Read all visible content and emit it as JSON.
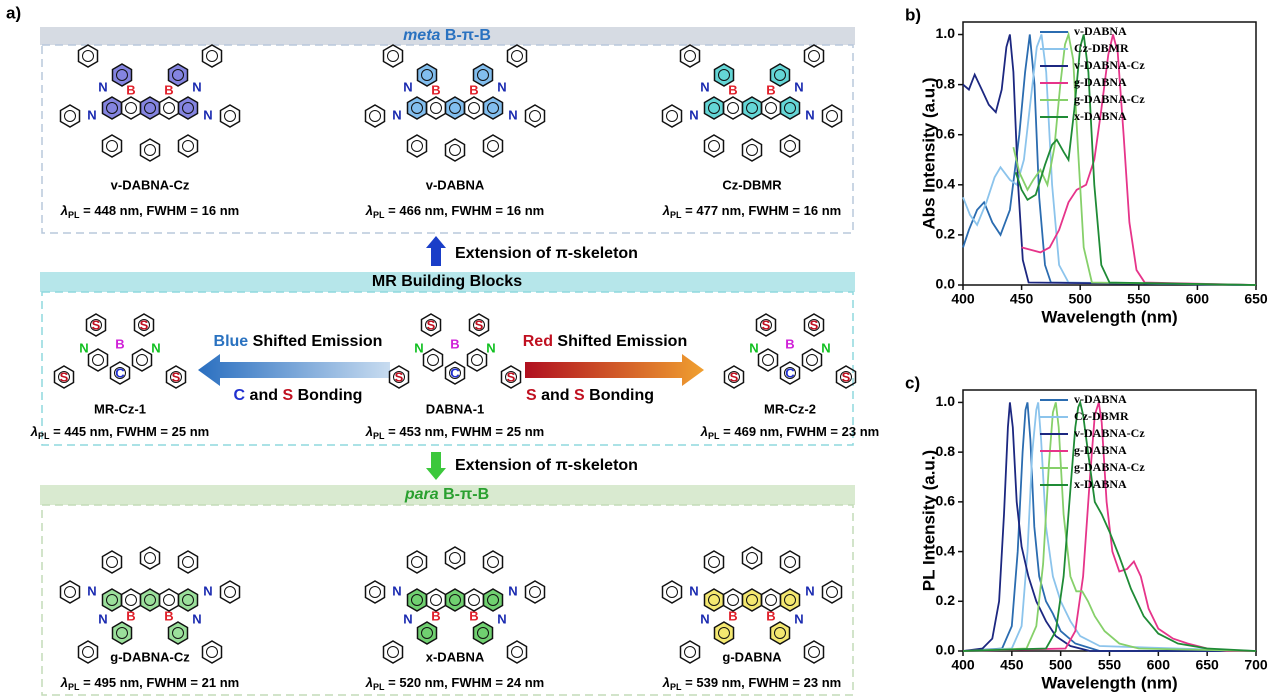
{
  "panel_a": {
    "label": "a)",
    "atoms": {
      "boron": "B",
      "nitrogen": "N",
      "carbon": "C",
      "sulfur": "S"
    },
    "lambda_symbol": "λ",
    "lambda_sub": "PL",
    "meta_header": [
      "meta",
      " B-π-B"
    ],
    "meta_molecules": [
      {
        "name": "v-DABNA-Cz",
        "caption": " = 448 nm, FWHM = 16 nm"
      },
      {
        "name": "v-DABNA",
        "caption": " = 466 nm, FWHM = 16 nm"
      },
      {
        "name": "Cz-DBMR",
        "caption": " = 477 nm, FWHM = 16 nm"
      }
    ],
    "extension_top": "Extension of π-skeleton",
    "mr_header": "MR Building Blocks",
    "blue_shift": [
      "Blue",
      " Shifted Emission"
    ],
    "blue_bonding": [
      "C",
      " and ",
      "S",
      " Bonding"
    ],
    "red_shift": [
      "Red",
      " Shifted Emission"
    ],
    "red_bonding": [
      "S",
      " and ",
      "S",
      " Bonding"
    ],
    "mr_molecules": [
      {
        "name": "MR-Cz-1",
        "caption": " = 445 nm, FWHM = 25 nm"
      },
      {
        "name": "DABNA-1",
        "caption": " = 453 nm, FWHM = 25 nm"
      },
      {
        "name": "MR-Cz-2",
        "caption": " = 469 nm, FWHM = 23 nm"
      }
    ],
    "extension_bottom": "Extension of π-skeleton",
    "para_header": [
      "para",
      " B-π-B"
    ],
    "para_molecules": [
      {
        "name": "g-DABNA-Cz",
        "caption": " = 495 nm, FWHM = 21 nm"
      },
      {
        "name": "x-DABNA",
        "caption": " = 520 nm, FWHM = 24 nm"
      },
      {
        "name": "g-DABNA",
        "caption": " = 539 nm, FWHM = 23 nm"
      }
    ]
  },
  "chart_data": [
    {
      "type": "line",
      "panel_label": "b)",
      "x_label": "Wavelength (nm)",
      "y_label": "Abs Intensity (a.u.)",
      "xlim": [
        400,
        650
      ],
      "xticks": [
        400,
        450,
        500,
        550,
        600,
        650
      ],
      "ylim": [
        0,
        1.05
      ],
      "yticks": [
        {
          "value": 0,
          "label": "0.0"
        },
        0.2,
        0.4,
        0.6,
        0.8,
        {
          "value": 1,
          "label": "1.0"
        }
      ],
      "legend": "upper right",
      "series": [
        {
          "name": "v-DABNA",
          "color": "#2b6cb0",
          "x": [
            400,
            405,
            412,
            418,
            425,
            432,
            440,
            448,
            453,
            457,
            461,
            465,
            470,
            475,
            650
          ],
          "values": [
            0.15,
            0.22,
            0.3,
            0.33,
            0.25,
            0.2,
            0.3,
            0.6,
            0.85,
            1.0,
            0.8,
            0.35,
            0.08,
            0.01,
            0
          ]
        },
        {
          "name": "Cz-DBMR",
          "color": "#8cc4ec",
          "x": [
            400,
            406,
            412,
            420,
            427,
            432,
            440,
            446,
            452,
            458,
            463,
            467,
            471,
            476,
            482,
            490,
            650
          ],
          "values": [
            0.35,
            0.28,
            0.24,
            0.33,
            0.43,
            0.47,
            0.42,
            0.4,
            0.5,
            0.75,
            0.95,
            1.0,
            0.85,
            0.4,
            0.08,
            0.01,
            0
          ]
        },
        {
          "name": "v-DABNA-Cz",
          "color": "#1c2780",
          "x": [
            400,
            405,
            410,
            416,
            422,
            428,
            433,
            437,
            440,
            443,
            447,
            451,
            456,
            650
          ],
          "values": [
            0.8,
            0.78,
            0.84,
            0.78,
            0.72,
            0.69,
            0.78,
            0.95,
            1.0,
            0.85,
            0.4,
            0.1,
            0.01,
            0
          ]
        },
        {
          "name": "g-DABNA",
          "color": "#e6348a",
          "x": [
            450,
            458,
            466,
            474,
            482,
            490,
            497,
            505,
            512,
            518,
            524,
            528,
            532,
            537,
            542,
            548,
            555,
            650
          ],
          "values": [
            0.15,
            0.14,
            0.13,
            0.15,
            0.22,
            0.33,
            0.38,
            0.4,
            0.5,
            0.7,
            0.92,
            1.0,
            0.93,
            0.6,
            0.25,
            0.06,
            0.01,
            0
          ]
        },
        {
          "name": "g-DABNA-Cz",
          "color": "#86d06a",
          "x": [
            443,
            448,
            455,
            460,
            466,
            472,
            478,
            483,
            487,
            490,
            494,
            498,
            503,
            510,
            650
          ],
          "values": [
            0.55,
            0.45,
            0.38,
            0.42,
            0.46,
            0.4,
            0.55,
            0.8,
            0.96,
            1.0,
            0.9,
            0.55,
            0.15,
            0.01,
            0
          ]
        },
        {
          "name": "x-DABNA",
          "color": "#1f8b36",
          "x": [
            445,
            450,
            455,
            462,
            470,
            476,
            480,
            486,
            490,
            495,
            500,
            503,
            507,
            512,
            518,
            525,
            650
          ],
          "values": [
            0.45,
            0.38,
            0.34,
            0.36,
            0.48,
            0.56,
            0.58,
            0.53,
            0.5,
            0.7,
            0.95,
            1.0,
            0.85,
            0.4,
            0.08,
            0.01,
            0
          ]
        }
      ]
    },
    {
      "type": "line",
      "panel_label": "c)",
      "x_label": "Wavelength (nm)",
      "y_label": "PL Intensity (a.u.)",
      "xlim": [
        400,
        700
      ],
      "xticks": [
        400,
        450,
        500,
        550,
        600,
        650,
        700
      ],
      "ylim": [
        0,
        1.05
      ],
      "yticks": [
        {
          "value": 0,
          "label": "0.0"
        },
        0.2,
        0.4,
        0.6,
        0.8,
        {
          "value": 1,
          "label": "1.0"
        }
      ],
      "legend": "upper right",
      "series": [
        {
          "name": "v-DABNA",
          "color": "#2b6cb0",
          "x": [
            400,
            440,
            450,
            456,
            461,
            464,
            466,
            469,
            473,
            478,
            485,
            492,
            500,
            515,
            540,
            700
          ],
          "values": [
            0,
            0.01,
            0.1,
            0.4,
            0.8,
            0.97,
            1.0,
            0.85,
            0.5,
            0.3,
            0.2,
            0.15,
            0.08,
            0.03,
            0,
            0
          ]
        },
        {
          "name": "Cz-DBMR",
          "color": "#8cc4ec",
          "x": [
            400,
            450,
            460,
            466,
            471,
            475,
            477,
            480,
            485,
            492,
            500,
            510,
            520,
            540,
            700
          ],
          "values": [
            0,
            0.01,
            0.1,
            0.4,
            0.8,
            0.97,
            1.0,
            0.85,
            0.5,
            0.3,
            0.2,
            0.12,
            0.06,
            0.02,
            0
          ]
        },
        {
          "name": "v-DABNA-Cz",
          "color": "#1c2780",
          "x": [
            400,
            420,
            430,
            437,
            442,
            446,
            448,
            451,
            455,
            460,
            467,
            475,
            485,
            495,
            510,
            530,
            700
          ],
          "values": [
            0,
            0.01,
            0.05,
            0.2,
            0.55,
            0.9,
            1.0,
            0.9,
            0.6,
            0.42,
            0.3,
            0.2,
            0.12,
            0.06,
            0.02,
            0,
            0
          ]
        },
        {
          "name": "g-DABNA",
          "color": "#e6348a",
          "x": [
            400,
            505,
            515,
            523,
            530,
            535,
            539,
            542,
            547,
            553,
            560,
            568,
            575,
            582,
            590,
            600,
            615,
            630,
            650,
            670,
            700
          ],
          "values": [
            0,
            0.01,
            0.08,
            0.3,
            0.7,
            0.95,
            1.0,
            0.92,
            0.6,
            0.4,
            0.32,
            0.33,
            0.36,
            0.3,
            0.17,
            0.09,
            0.05,
            0.03,
            0.01,
            0,
            0
          ]
        },
        {
          "name": "g-DABNA-Cz",
          "color": "#86d06a",
          "x": [
            400,
            465,
            475,
            482,
            488,
            492,
            495,
            498,
            503,
            510,
            516,
            522,
            528,
            535,
            545,
            560,
            580,
            700
          ],
          "values": [
            0,
            0.01,
            0.1,
            0.35,
            0.75,
            0.96,
            1.0,
            0.9,
            0.55,
            0.3,
            0.24,
            0.24,
            0.2,
            0.14,
            0.08,
            0.03,
            0.01,
            0
          ]
        },
        {
          "name": "x-DABNA",
          "color": "#1f8b36",
          "x": [
            400,
            485,
            495,
            503,
            510,
            515,
            518,
            520,
            523,
            528,
            535,
            542,
            550,
            560,
            572,
            585,
            600,
            620,
            650,
            700
          ],
          "values": [
            0,
            0.01,
            0.08,
            0.3,
            0.65,
            0.9,
            0.98,
            1.0,
            0.95,
            0.8,
            0.6,
            0.55,
            0.48,
            0.38,
            0.25,
            0.14,
            0.07,
            0.03,
            0.01,
            0
          ]
        }
      ]
    }
  ]
}
